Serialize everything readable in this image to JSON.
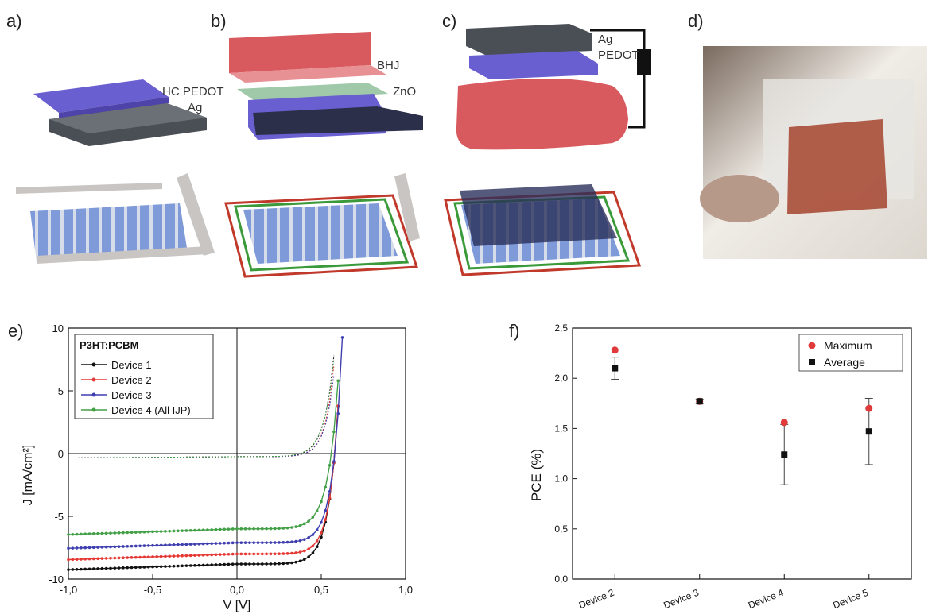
{
  "panels": {
    "a": {
      "label": "a)",
      "layer1": "HC PEDOT",
      "layer2": "Ag"
    },
    "b": {
      "label": "b)",
      "layer1": "BHJ",
      "layer2": "ZnO"
    },
    "c": {
      "label": "c)",
      "layer1": "Ag",
      "layer2": "PEDOT"
    },
    "d": {
      "label": "d)"
    },
    "e": {
      "label": "e)"
    },
    "f": {
      "label": "f)"
    }
  },
  "colors": {
    "pedot": "#6a5fd0",
    "silver": "#4a4f55",
    "bhj": "#d85a5e",
    "zno": "#9fc9a8",
    "frame_red": "#c0392b",
    "frame_green": "#3a9a3a",
    "electrode": "#7b9bd6",
    "legend_maximum": "#e03a3a",
    "legend_average": "#111111"
  },
  "chart_data": [
    {
      "type": "line",
      "xlabel": "V [V]",
      "ylabel": "J [mA/cm²]",
      "xlim": [
        -1.0,
        1.0
      ],
      "ylim": [
        -10,
        10
      ],
      "xticks": [
        "-1,0",
        "-0,5",
        "0,0",
        "0,5",
        "1,0"
      ],
      "yticks": [
        "-10",
        "-5",
        "0",
        "5",
        "10"
      ],
      "legend_title": "P3HT:PCBM",
      "legend_position": "top-left",
      "series": [
        {
          "name": "Device 1",
          "color": "#111111",
          "jsc": 8.8,
          "voc": 0.58,
          "n": 2.2
        },
        {
          "name": "Device 2",
          "color": "#e53935",
          "jsc": 8.0,
          "voc": 0.58,
          "n": 2.0
        },
        {
          "name": "Device 3",
          "color": "#3f3fb0",
          "jsc": 7.1,
          "voc": 0.58,
          "n": 2.1
        },
        {
          "name": "Device 4 (All IJP)",
          "color": "#43a047",
          "jsc": 6.0,
          "voc": 0.56,
          "n": 2.3
        }
      ],
      "dark_curves": true
    },
    {
      "type": "scatter",
      "ylabel": "PCE (%)",
      "ylim": [
        0.0,
        2.5
      ],
      "yticks": [
        "0,0",
        "0,5",
        "1,0",
        "1,5",
        "2,0",
        "2,5"
      ],
      "categories": [
        "Device 2",
        "Device 3",
        "Device 4",
        "Device 5"
      ],
      "legend_position": "top-right",
      "series": [
        {
          "name": "Maximum",
          "values": [
            2.28,
            1.77,
            1.56,
            1.7
          ]
        },
        {
          "name": "Average",
          "values": [
            2.1,
            1.77,
            1.24,
            1.47
          ],
          "err": [
            0.11,
            0.02,
            0.3,
            0.33
          ]
        }
      ]
    }
  ]
}
